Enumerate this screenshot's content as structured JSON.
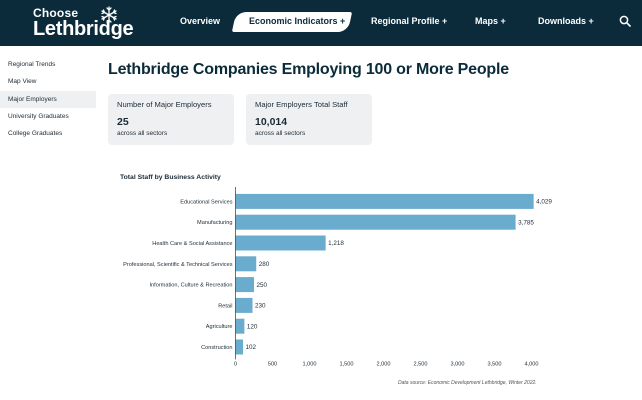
{
  "header": {
    "logo_line1": "Choose",
    "logo_line2": "Lethbridge",
    "nav": [
      {
        "label": "Overview"
      },
      {
        "label": "Economic Indicators +"
      },
      {
        "label": "Regional Profile +"
      },
      {
        "label": "Maps +"
      },
      {
        "label": "Downloads +"
      }
    ],
    "active_nav": "Economic Indicators +",
    "search_icon": "search-icon",
    "bar_color": "#0b2a3a"
  },
  "sidebar": {
    "items": [
      {
        "label": "Regional Trends"
      },
      {
        "label": "Map View"
      },
      {
        "label": "Major Employers"
      },
      {
        "label": "University Graduates"
      },
      {
        "label": "College Graduates"
      }
    ],
    "active": "Major Employers"
  },
  "page": {
    "title": "Lethbridge Companies Employing 100 or More People"
  },
  "cards": [
    {
      "title": "Number of Major Employers",
      "value": "25",
      "sub": "across all sectors"
    },
    {
      "title": "Major Employers Total Staff",
      "value": "10,014",
      "sub": "across all sectors"
    }
  ],
  "chart_data": {
    "type": "bar",
    "orientation": "horizontal",
    "title": "Total Staff by Business Activity",
    "categories": [
      "Educational Services",
      "Manufacturing",
      "Health Care & Social Assistance",
      "Professional, Scientific & Technical Services",
      "Information, Culture & Recreation",
      "Retail",
      "Agriculture",
      "Construction"
    ],
    "values": [
      4029,
      3785,
      1218,
      280,
      250,
      230,
      120,
      102
    ],
    "value_labels": [
      "4,029",
      "3,785",
      "1,218",
      "280",
      "250",
      "230",
      "120",
      "102"
    ],
    "x_ticks": [
      "0",
      "500",
      "1,000",
      "1,500",
      "2,000",
      "2,500",
      "3,000",
      "3,500",
      "4,000"
    ],
    "xlim": [
      0,
      4000
    ],
    "grid": false,
    "bar_color": "#6aaccd",
    "source": "Data source: Economic Development Lethbridge, Winter 2022."
  }
}
